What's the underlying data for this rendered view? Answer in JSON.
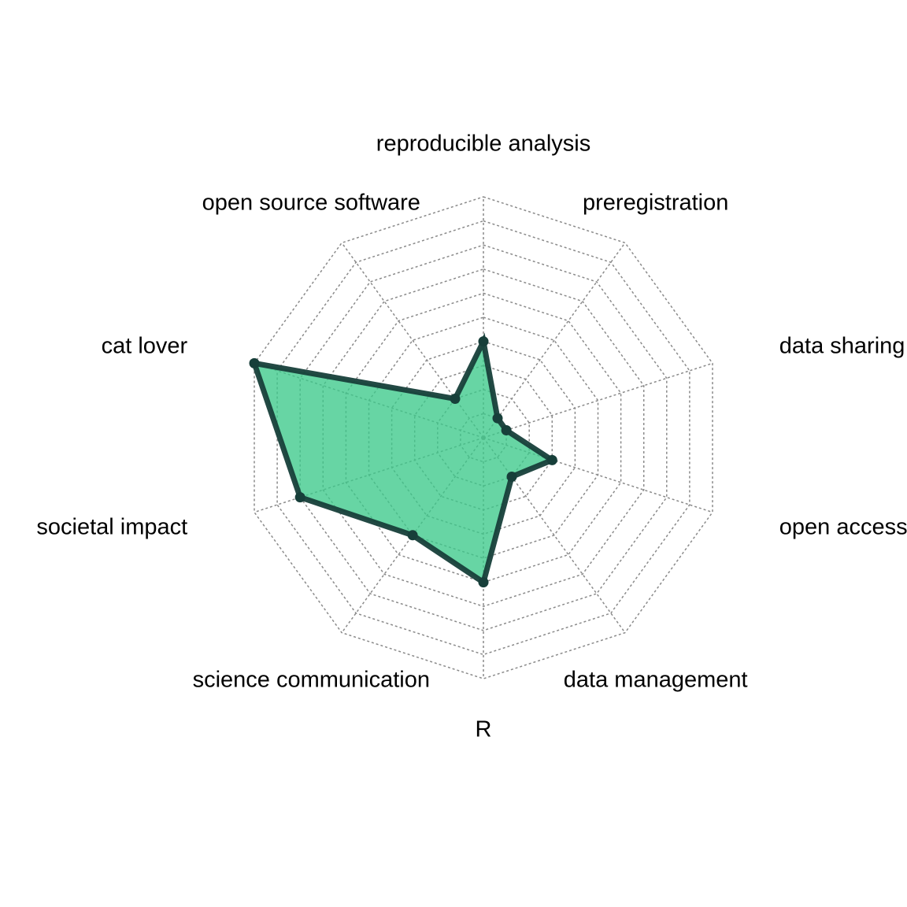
{
  "chart_data": {
    "type": "radar",
    "axes": [
      "reproducible analysis",
      "preregistration",
      "data sharing",
      "open access",
      "data management",
      "R",
      "science communication",
      "societal impact",
      "cat lover",
      "open source software"
    ],
    "series": [
      {
        "values": [
          4,
          1,
          1,
          3,
          2,
          6,
          5,
          8,
          10,
          2
        ]
      }
    ],
    "range": [
      0,
      10
    ],
    "grid_levels": 10,
    "grid": true,
    "colors": {
      "fill": "#3cc98a",
      "line": "#173f3a",
      "grid": "#8a8a8a",
      "text": "#000000"
    }
  }
}
